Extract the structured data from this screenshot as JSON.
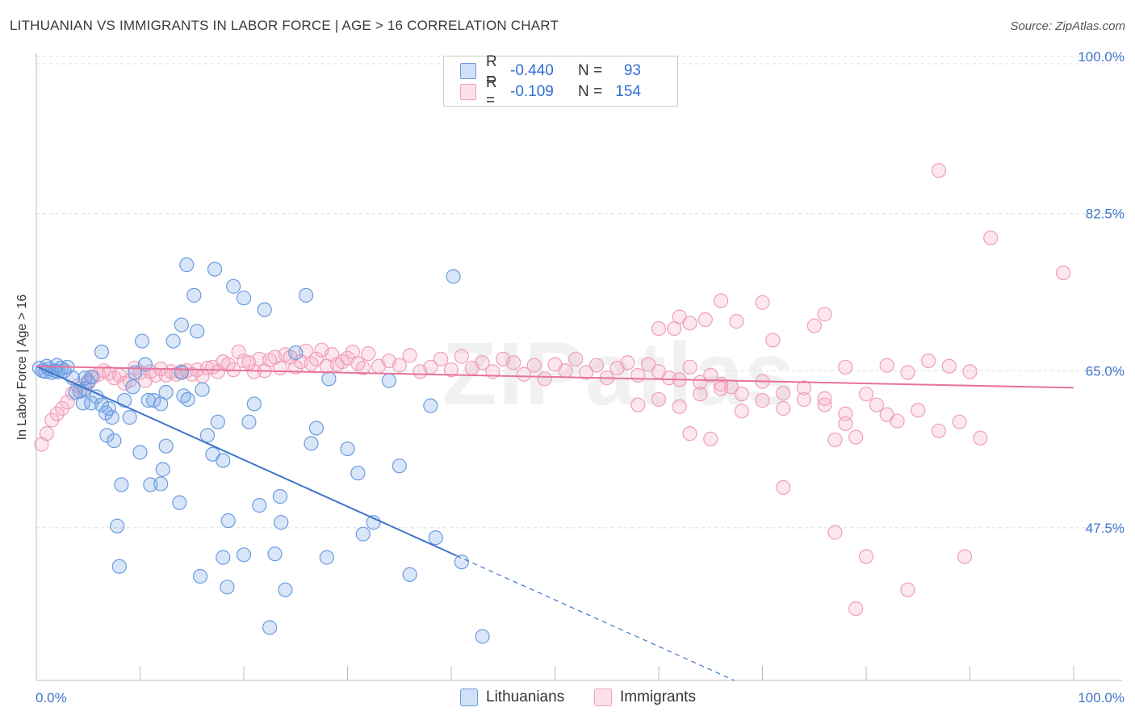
{
  "title": "LITHUANIAN VS IMMIGRANTS IN LABOR FORCE | AGE > 16 CORRELATION CHART",
  "source": "Source: ZipAtlas.com",
  "watermark": "ZIPatlas",
  "colors": {
    "blue": "#3f74c9",
    "blue_fill": "rgba(120,165,230,0.28)",
    "blue_stroke": "#6a9ce0",
    "pink": "#e8729b",
    "pink_fill": "rgba(245,170,195,0.28)",
    "pink_stroke": "#ef9fbb",
    "grid": "#dddddd"
  },
  "legend": {
    "rows": [
      {
        "r_label": "R =",
        "r_value": "-0.440",
        "n_label": "N =",
        "n_value": "93"
      },
      {
        "r_label": "R =",
        "r_value": "-0.109",
        "n_label": "N =",
        "n_value": "154"
      }
    ]
  },
  "bottom_legend": {
    "series1": "Lithuanians",
    "series2": "Immigrants"
  },
  "chart_data": {
    "type": "scatter",
    "title": "LITHUANIAN VS IMMIGRANTS IN LABOR FORCE | AGE > 16 CORRELATION CHART",
    "xlabel": "",
    "ylabel": "In Labor Force | Age > 16",
    "xlim": [
      0,
      100
    ],
    "ylim": [
      30.5,
      100
    ],
    "x_tick_labels": [
      "0.0%",
      "100.0%"
    ],
    "y_ticks": [
      47.5,
      65.0,
      82.5,
      100.0
    ],
    "y_tick_labels": [
      "47.5%",
      "65.0%",
      "82.5%",
      "100.0%"
    ],
    "series": [
      {
        "name": "Lithuanians",
        "r": -0.44,
        "n": 93,
        "trend": {
          "x0": 0,
          "y0": 65.5,
          "x1": 40.5,
          "y1": 44.4,
          "dash_to_x": 67.3,
          "dash_to_y": 30.5
        },
        "points": [
          [
            0.3,
            65.3
          ],
          [
            0.6,
            65.0
          ],
          [
            0.9,
            64.9
          ],
          [
            1.2,
            65.2
          ],
          [
            1.5,
            64.8
          ],
          [
            1.8,
            65.0
          ],
          [
            2.1,
            64.9
          ],
          [
            2.4,
            65.3
          ],
          [
            2.7,
            65.0
          ],
          [
            3.0,
            65.4
          ],
          [
            1.0,
            65.5
          ],
          [
            2.0,
            65.6
          ],
          [
            3.5,
            64.2
          ],
          [
            3.8,
            62.6
          ],
          [
            4.2,
            62.7
          ],
          [
            4.5,
            61.4
          ],
          [
            4.7,
            63.0
          ],
          [
            5.0,
            63.8
          ],
          [
            5.3,
            61.4
          ],
          [
            5.8,
            62.1
          ],
          [
            6.3,
            61.2
          ],
          [
            6.7,
            60.3
          ],
          [
            4.7,
            64.2
          ],
          [
            5.3,
            64.3
          ],
          [
            6.3,
            67.1
          ],
          [
            6.8,
            57.8
          ],
          [
            7.0,
            60.8
          ],
          [
            7.3,
            59.8
          ],
          [
            7.5,
            57.2
          ],
          [
            7.8,
            47.7
          ],
          [
            8.2,
            52.3
          ],
          [
            8.5,
            61.7
          ],
          [
            9.0,
            59.8
          ],
          [
            9.3,
            63.2
          ],
          [
            9.5,
            64.8
          ],
          [
            10.0,
            55.9
          ],
          [
            10.2,
            68.3
          ],
          [
            10.8,
            61.7
          ],
          [
            11.3,
            61.7
          ],
          [
            12.0,
            61.3
          ],
          [
            12.5,
            62.6
          ],
          [
            12.0,
            52.4
          ],
          [
            8.0,
            43.2
          ],
          [
            11.0,
            52.3
          ],
          [
            12.2,
            54.0
          ],
          [
            12.5,
            56.6
          ],
          [
            14.0,
            64.8
          ],
          [
            14.2,
            62.2
          ],
          [
            14.6,
            61.8
          ],
          [
            13.8,
            50.3
          ],
          [
            10.5,
            65.7
          ],
          [
            13.2,
            68.3
          ],
          [
            14.0,
            70.1
          ],
          [
            14.5,
            76.8
          ],
          [
            15.2,
            73.4
          ],
          [
            15.5,
            69.4
          ],
          [
            15.8,
            42.1
          ],
          [
            16.0,
            62.9
          ],
          [
            16.5,
            57.8
          ],
          [
            17.0,
            55.7
          ],
          [
            17.5,
            59.3
          ],
          [
            18.0,
            44.2
          ],
          [
            19.0,
            74.4
          ],
          [
            18.5,
            48.3
          ],
          [
            18.0,
            55.0
          ],
          [
            17.2,
            76.3
          ],
          [
            18.4,
            40.9
          ],
          [
            20.0,
            73.1
          ],
          [
            20.5,
            59.3
          ],
          [
            21.0,
            61.3
          ],
          [
            21.5,
            50.0
          ],
          [
            22.0,
            71.8
          ],
          [
            22.5,
            36.4
          ],
          [
            23.0,
            44.6
          ],
          [
            23.5,
            51.0
          ],
          [
            24.0,
            40.6
          ],
          [
            25.0,
            67.0
          ],
          [
            26.0,
            73.4
          ],
          [
            26.5,
            56.9
          ],
          [
            27.0,
            58.6
          ],
          [
            28.0,
            44.2
          ],
          [
            28.2,
            64.1
          ],
          [
            30.0,
            56.3
          ],
          [
            31.0,
            53.6
          ],
          [
            31.5,
            46.8
          ],
          [
            32.5,
            48.1
          ],
          [
            34.0,
            63.9
          ],
          [
            35.0,
            54.4
          ],
          [
            36.0,
            42.3
          ],
          [
            38.0,
            61.1
          ],
          [
            38.5,
            46.4
          ],
          [
            40.2,
            75.5
          ],
          [
            41.0,
            43.7
          ],
          [
            43.0,
            35.4
          ],
          [
            20.0,
            44.5
          ],
          [
            23.6,
            48.1
          ]
        ]
      },
      {
        "name": "Immigrants",
        "r": -0.109,
        "n": 154,
        "trend": {
          "x0": 0,
          "y0": 65.5,
          "x1": 100,
          "y1": 63.1
        },
        "points": [
          [
            0.5,
            56.8
          ],
          [
            1.0,
            58.0
          ],
          [
            1.5,
            59.5
          ],
          [
            2.0,
            60.2
          ],
          [
            2.5,
            60.8
          ],
          [
            3.0,
            61.5
          ],
          [
            3.5,
            62.5
          ],
          [
            4.0,
            63.3
          ],
          [
            4.5,
            62.8
          ],
          [
            5.0,
            63.6
          ],
          [
            5.5,
            64.3
          ],
          [
            6.0,
            64.6
          ],
          [
            6.5,
            65.0
          ],
          [
            7.0,
            64.7
          ],
          [
            7.5,
            64.2
          ],
          [
            8.0,
            64.5
          ],
          [
            8.5,
            63.6
          ],
          [
            9.0,
            63.9
          ],
          [
            9.5,
            65.3
          ],
          [
            10.0,
            64.8
          ],
          [
            10.5,
            63.9
          ],
          [
            11.0,
            64.9
          ],
          [
            11.5,
            64.5
          ],
          [
            12.0,
            65.2
          ],
          [
            12.5,
            64.5
          ],
          [
            13.0,
            64.9
          ],
          [
            13.5,
            64.6
          ],
          [
            14.0,
            64.9
          ],
          [
            14.5,
            65.0
          ],
          [
            15.0,
            64.6
          ],
          [
            15.5,
            65.1
          ],
          [
            16.0,
            64.4
          ],
          [
            16.5,
            65.3
          ],
          [
            17.0,
            65.4
          ],
          [
            17.5,
            64.9
          ],
          [
            18.0,
            66.0
          ],
          [
            18.5,
            65.7
          ],
          [
            19.0,
            65.1
          ],
          [
            19.5,
            67.1
          ],
          [
            20.0,
            66.1
          ],
          [
            20.5,
            65.9
          ],
          [
            21.0,
            64.9
          ],
          [
            21.5,
            66.3
          ],
          [
            22.0,
            65.0
          ],
          [
            22.5,
            66.2
          ],
          [
            23.0,
            66.5
          ],
          [
            23.5,
            65.3
          ],
          [
            24.0,
            66.8
          ],
          [
            24.5,
            66.5
          ],
          [
            25.0,
            65.4
          ],
          [
            25.5,
            66.0
          ],
          [
            26.0,
            67.2
          ],
          [
            26.5,
            65.8
          ],
          [
            27.0,
            66.3
          ],
          [
            27.5,
            67.3
          ],
          [
            28.0,
            65.5
          ],
          [
            28.5,
            66.8
          ],
          [
            29.0,
            65.7
          ],
          [
            29.5,
            66.0
          ],
          [
            30.0,
            66.4
          ],
          [
            30.5,
            67.1
          ],
          [
            31.0,
            65.8
          ],
          [
            31.5,
            65.3
          ],
          [
            32.0,
            66.9
          ],
          [
            33.0,
            65.5
          ],
          [
            34.0,
            66.1
          ],
          [
            35.0,
            65.6
          ],
          [
            36.0,
            66.7
          ],
          [
            37.0,
            64.9
          ],
          [
            38.0,
            65.4
          ],
          [
            39.0,
            66.3
          ],
          [
            40.0,
            65.1
          ],
          [
            41.0,
            66.6
          ],
          [
            42.0,
            65.3
          ],
          [
            43.0,
            65.9
          ],
          [
            44.0,
            64.9
          ],
          [
            45.0,
            66.3
          ],
          [
            46.0,
            65.9
          ],
          [
            47.0,
            64.6
          ],
          [
            48.0,
            65.6
          ],
          [
            49.0,
            64.1
          ],
          [
            50.0,
            65.7
          ],
          [
            51.0,
            65.0
          ],
          [
            52.0,
            66.3
          ],
          [
            53.0,
            64.8
          ],
          [
            54.0,
            65.6
          ],
          [
            55.0,
            64.2
          ],
          [
            56.0,
            65.3
          ],
          [
            57.0,
            65.9
          ],
          [
            58.0,
            64.5
          ],
          [
            59.0,
            65.7
          ],
          [
            60.0,
            64.9
          ],
          [
            61.0,
            64.2
          ],
          [
            62.0,
            64.0
          ],
          [
            63.0,
            65.4
          ],
          [
            64.0,
            63.7
          ],
          [
            65.0,
            64.5
          ],
          [
            66.0,
            63.5
          ],
          [
            67.0,
            63.2
          ],
          [
            68.0,
            62.4
          ],
          [
            70.0,
            63.8
          ],
          [
            72.0,
            62.5
          ],
          [
            74.0,
            61.8
          ],
          [
            76.0,
            61.2
          ],
          [
            77.0,
            57.3
          ],
          [
            78.0,
            59.1
          ],
          [
            79.0,
            57.6
          ],
          [
            80.0,
            62.4
          ],
          [
            81.0,
            61.2
          ],
          [
            82.0,
            60.1
          ],
          [
            83.0,
            59.4
          ],
          [
            85.0,
            60.6
          ],
          [
            87.0,
            58.3
          ],
          [
            89.0,
            59.3
          ],
          [
            91.0,
            57.5
          ],
          [
            60.0,
            69.7
          ],
          [
            61.5,
            69.7
          ],
          [
            62.0,
            71.0
          ],
          [
            63.0,
            70.3
          ],
          [
            64.5,
            70.7
          ],
          [
            67.5,
            70.5
          ],
          [
            70.0,
            72.6
          ],
          [
            75.0,
            70.0
          ],
          [
            76.0,
            71.3
          ],
          [
            78.0,
            65.4
          ],
          [
            82.0,
            65.6
          ],
          [
            84.0,
            64.8
          ],
          [
            86.0,
            66.1
          ],
          [
            88.0,
            65.5
          ],
          [
            90.0,
            64.9
          ],
          [
            60.0,
            61.8
          ],
          [
            62.0,
            61.0
          ],
          [
            64.0,
            62.4
          ],
          [
            66.0,
            63.0
          ],
          [
            68.0,
            60.5
          ],
          [
            70.0,
            61.7
          ],
          [
            72.0,
            60.8
          ],
          [
            74.0,
            63.1
          ],
          [
            76.0,
            61.9
          ],
          [
            78.0,
            60.2
          ],
          [
            58.0,
            61.2
          ],
          [
            63.0,
            58.0
          ],
          [
            65.0,
            57.4
          ],
          [
            72.0,
            52.0
          ],
          [
            77.0,
            47.0
          ],
          [
            80.0,
            44.3
          ],
          [
            84.0,
            40.6
          ],
          [
            87.0,
            87.3
          ],
          [
            92.0,
            79.8
          ],
          [
            99.0,
            75.9
          ],
          [
            79.0,
            38.5
          ],
          [
            89.5,
            44.3
          ],
          [
            71.0,
            68.4
          ],
          [
            66.0,
            72.8
          ]
        ]
      }
    ]
  }
}
